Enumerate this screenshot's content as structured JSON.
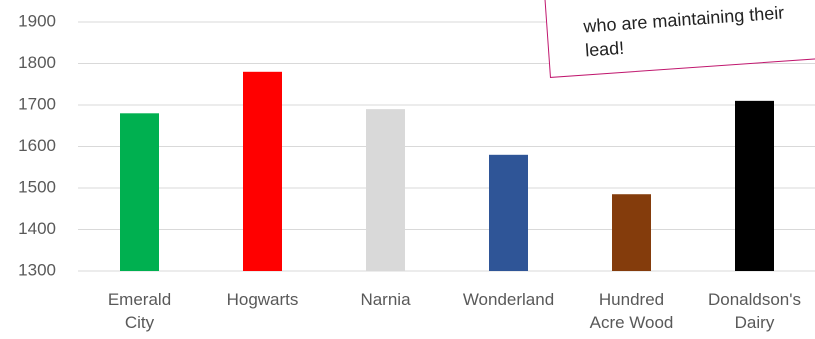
{
  "chart_data": {
    "type": "bar",
    "annotation": "who are maintaining their lead!",
    "categories": [
      "Emerald City",
      "Hogwarts",
      "Narnia",
      "Wonderland",
      "Hundred Acre Wood",
      "Donaldson's Dairy"
    ],
    "values": [
      1680,
      1780,
      1690,
      1580,
      1485,
      1710
    ],
    "colors": [
      "#00b050",
      "#ff0000",
      "#d9d9d9",
      "#2f5597",
      "#843c0c",
      "#000000"
    ],
    "ylim": [
      1300,
      1900
    ],
    "yticks": [
      1300,
      1400,
      1500,
      1600,
      1700,
      1800,
      1900
    ],
    "grid": true
  }
}
